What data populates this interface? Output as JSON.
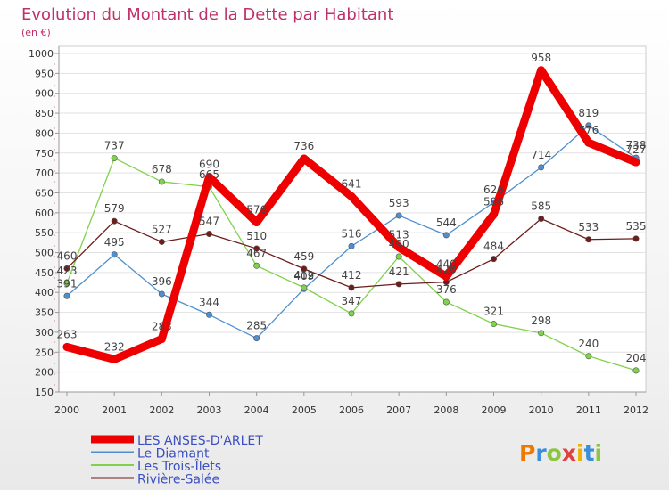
{
  "chart_data": {
    "type": "line",
    "title": "Evolution du Montant de la Dette par Habitant",
    "subtitle": "(en €)",
    "x": [
      "2000",
      "2001",
      "2002",
      "2003",
      "2004",
      "2005",
      "2006",
      "2007",
      "2008",
      "2009",
      "2010",
      "2011",
      "2012"
    ],
    "ylim": [
      150,
      1000
    ],
    "yticks": [
      150,
      200,
      250,
      300,
      350,
      400,
      450,
      500,
      550,
      600,
      650,
      700,
      750,
      800,
      850,
      900,
      950,
      1000
    ],
    "grid": true,
    "legend_position": "bottom-left",
    "series": [
      {
        "name": "LES ANSES-D'ARLET",
        "color": "#ee0000",
        "values": [
          263,
          232,
          283,
          690,
          576,
          736,
          641,
          513,
          440,
          596,
          958,
          776,
          727
        ],
        "labels": [
          "263",
          "232",
          "283",
          "690",
          "576",
          "736",
          "641",
          "513",
          "440",
          "596",
          "958",
          "776",
          "727"
        ]
      },
      {
        "name": "Le Diamant",
        "color": "#4f8fcf",
        "values": [
          391,
          495,
          396,
          344,
          285,
          409,
          516,
          593,
          544,
          626,
          714,
          819,
          738
        ],
        "labels": [
          "391",
          "495",
          "396",
          "344",
          "285",
          "409",
          "516",
          "593",
          "544",
          "626",
          "714",
          "819",
          "738"
        ]
      },
      {
        "name": "Les Trois-Îlets",
        "color": "#7fd24a",
        "values": [
          423,
          737,
          678,
          665,
          467,
          412,
          347,
          490,
          376,
          321,
          298,
          240,
          204
        ],
        "labels": [
          "423",
          "737",
          "678",
          "665",
          "467",
          "412",
          "347",
          "490",
          "376",
          "321",
          "298",
          "240",
          "204"
        ]
      },
      {
        "name": "Rivière-Salée",
        "color": "#6e1c1c",
        "values": [
          460,
          579,
          527,
          547,
          510,
          459,
          412,
          421,
          426,
          484,
          585,
          533,
          535
        ],
        "labels": [
          "460",
          "579",
          "527",
          "547",
          "510",
          "459",
          "412",
          "421",
          "426",
          "484",
          "585",
          "533",
          "535"
        ]
      }
    ]
  },
  "branding": {
    "logo_text": "Proxiti",
    "logo_colors": [
      "#f07800",
      "#3a8fd8",
      "#8cc63f",
      "#e04040",
      "#f0b000",
      "#3a8fd8",
      "#8cc63f"
    ]
  },
  "colors": {
    "title": "#c0306a",
    "axis_text": "#333333",
    "grid": "#dddddd"
  }
}
